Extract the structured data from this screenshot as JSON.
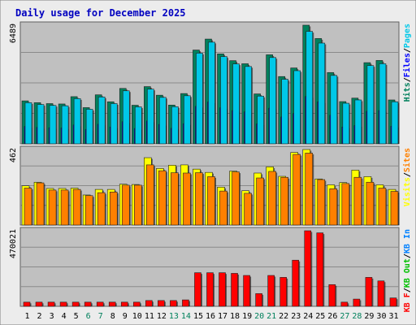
{
  "title": "Daily usage for December 2025",
  "colors": {
    "background": "#ececec",
    "plot": "#c0c0c0",
    "grid": "#8a8a8a",
    "hits": "#00805c",
    "files": "#0000ff",
    "pages": "#00c8e8",
    "visits": "#ffff00",
    "sites": "#ff8000",
    "kb_in": "#0080ff",
    "kb_out": "#00c000",
    "kb_f": "#ff0000",
    "title": "#0000c0",
    "axis_label": "#000000"
  },
  "chart_data": [
    {
      "type": "bar",
      "panel": "hits-files-pages",
      "categories": [
        "1",
        "2",
        "3",
        "4",
        "5",
        "6",
        "7",
        "8",
        "9",
        "10",
        "11",
        "12",
        "13",
        "14",
        "15",
        "16",
        "17",
        "18",
        "19",
        "20",
        "21",
        "22",
        "23",
        "24",
        "25",
        "26",
        "27",
        "28",
        "29",
        "30",
        "31"
      ],
      "day_label_colors": [
        "#000000",
        "#000000",
        "#000000",
        "#000000",
        "#000000",
        "#00805c",
        "#00805c",
        "#000000",
        "#000000",
        "#000000",
        "#000000",
        "#000000",
        "#00805c",
        "#00805c",
        "#000000",
        "#000000",
        "#000000",
        "#000000",
        "#000000",
        "#00805c",
        "#00805c",
        "#000000",
        "#000000",
        "#000000",
        "#000000",
        "#000000",
        "#00805c",
        "#00805c",
        "#000000",
        "#000000",
        "#000000"
      ],
      "ymax_label": "6489",
      "ylim": [
        0,
        6489
      ],
      "legend": [
        {
          "text": "Hits",
          "color": "#00805c"
        },
        {
          "text": "/",
          "color": "#000000"
        },
        {
          "text": "Files",
          "color": "#0000ff"
        },
        {
          "text": "/",
          "color": "#000000"
        },
        {
          "text": "Pages",
          "color": "#00c8e8"
        }
      ],
      "series": [
        {
          "key": "hits",
          "values": [
            2350,
            2250,
            2200,
            2180,
            2580,
            1980,
            2680,
            2300,
            3030,
            2110,
            3130,
            2660,
            2120,
            2750,
            5130,
            5730,
            4920,
            4550,
            4380,
            2730,
            4870,
            3680,
            4150,
            6489,
            5760,
            3900,
            2310,
            2500,
            4440,
            4560,
            2400
          ]
        },
        {
          "key": "files",
          "values": [
            950,
            900,
            880,
            870,
            1030,
            790,
            1070,
            920,
            1210,
            840,
            1250,
            1060,
            850,
            1100,
            2050,
            2290,
            1970,
            1820,
            1750,
            1090,
            1950,
            1470,
            1660,
            2590,
            2300,
            1560,
            920,
            1000,
            1780,
            1820,
            960
          ]
        },
        {
          "key": "pages",
          "values": [
            2250,
            2150,
            2100,
            2080,
            2470,
            1890,
            2560,
            2200,
            2900,
            2020,
            2990,
            2540,
            2030,
            2630,
            4960,
            5560,
            4770,
            4370,
            4230,
            2610,
            4720,
            3530,
            4000,
            6150,
            5510,
            3740,
            2220,
            2400,
            4280,
            4380,
            2300
          ]
        }
      ]
    },
    {
      "type": "bar",
      "panel": "visits-sites",
      "ymax_label": "462",
      "ylim": [
        0,
        462
      ],
      "legend": [
        {
          "text": "Visits",
          "color": "#ffff00"
        },
        {
          "text": "/",
          "color": "#000000"
        },
        {
          "text": "Sites",
          "color": "#ff8000"
        }
      ],
      "series": [
        {
          "key": "visits",
          "values": [
            240,
            262,
            224,
            224,
            226,
            184,
            218,
            218,
            250,
            248,
            412,
            346,
            366,
            368,
            342,
            322,
            232,
            330,
            210,
            318,
            356,
            298,
            444,
            462,
            282,
            246,
            260,
            336,
            296,
            246,
            218
          ]
        },
        {
          "key": "sites",
          "values": [
            226,
            258,
            214,
            214,
            218,
            180,
            198,
            202,
            244,
            244,
            368,
            332,
            320,
            318,
            320,
            296,
            208,
            325,
            194,
            288,
            328,
            292,
            432,
            440,
            278,
            222,
            254,
            292,
            262,
            226,
            206
          ]
        }
      ]
    },
    {
      "type": "bar",
      "panel": "kbytes",
      "ymax_label": "470021",
      "ylim": [
        0,
        470021
      ],
      "legend": [
        {
          "text": "KB F",
          "color": "#ff0000"
        },
        {
          "text": "/",
          "color": "#000000"
        },
        {
          "text": "KB Out",
          "color": "#00c000"
        },
        {
          "text": "/",
          "color": "#000000"
        },
        {
          "text": "KB In",
          "color": "#0080ff"
        }
      ],
      "series": [
        {
          "key": "kb_f",
          "values": [
            26000,
            26000,
            26000,
            26000,
            26000,
            26000,
            26000,
            26000,
            26000,
            26000,
            36000,
            36000,
            36000,
            40000,
            209000,
            209000,
            209000,
            205000,
            192000,
            79000,
            192000,
            180000,
            287000,
            470021,
            457000,
            135000,
            26000,
            45000,
            180000,
            158000,
            52000
          ]
        }
      ]
    }
  ]
}
